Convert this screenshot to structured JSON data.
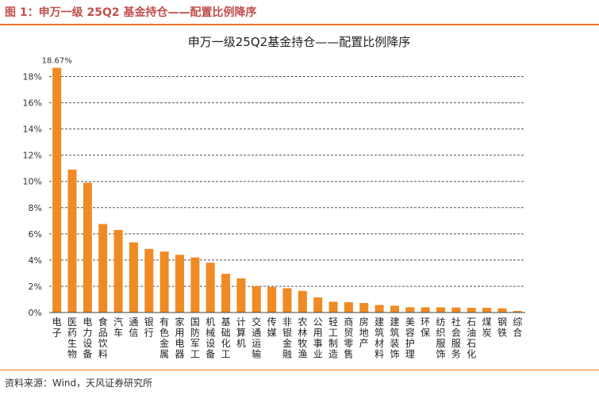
{
  "figure": {
    "title": "图 1：申万一级 25Q2 基金持仓——配置比例降序",
    "source": "资料来源：Wind，天风证券研究所"
  },
  "colors": {
    "bar": "#f08a24",
    "title_text": "#c0504d",
    "rule": "#e87722",
    "grid": "#555555"
  },
  "chart_data": {
    "type": "bar",
    "title": "申万一级25Q2基金持仓——配置比例降序",
    "xlabel": "",
    "ylabel": "",
    "ylim": [
      0,
      19
    ],
    "yticks": [
      "0%",
      "2%",
      "4%",
      "6%",
      "8%",
      "10%",
      "12%",
      "14%",
      "16%",
      "18%"
    ],
    "ytick_values": [
      0,
      2,
      4,
      6,
      8,
      10,
      12,
      14,
      16,
      18
    ],
    "grid": true,
    "legend": "none",
    "categories": [
      "电子",
      "医药生物",
      "电力设备",
      "食品饮料",
      "汽车",
      "通信",
      "银行",
      "有色金属",
      "家用电器",
      "国防军工",
      "机械设备",
      "基础化工",
      "计算机",
      "交通运输",
      "传媒",
      "非银金融",
      "农林牧渔",
      "公用事业",
      "轻工制造",
      "商贸零售",
      "房地产",
      "建筑材料",
      "建筑装饰",
      "美容护理",
      "环保",
      "纺织服饰",
      "社会服务",
      "石油石化",
      "煤炭",
      "钢铁",
      "综合"
    ],
    "values": [
      18.67,
      10.9,
      9.9,
      6.75,
      6.3,
      5.35,
      4.85,
      4.65,
      4.4,
      4.2,
      3.8,
      2.95,
      2.6,
      2.0,
      1.95,
      1.85,
      1.65,
      1.15,
      0.82,
      0.78,
      0.72,
      0.57,
      0.52,
      0.4,
      0.4,
      0.4,
      0.38,
      0.36,
      0.36,
      0.32,
      0.12
    ],
    "data_labels": [
      {
        "index": 0,
        "text": "18.67%"
      }
    ]
  }
}
